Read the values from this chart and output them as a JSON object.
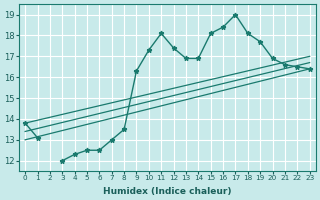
{
  "xlabel": "Humidex (Indice chaleur)",
  "background_color": "#c8eaea",
  "grid_color": "#ffffff",
  "line_color": "#1a7a6e",
  "xlim": [
    -0.5,
    23.5
  ],
  "ylim": [
    11.5,
    19.5
  ],
  "xtick_labels": [
    "0",
    "1",
    "2",
    "3",
    "4",
    "5",
    "6",
    "7",
    "8",
    "9",
    "10",
    "11",
    "12",
    "13",
    "14",
    "15",
    "16",
    "17",
    "18",
    "19",
    "20",
    "21",
    "22",
    "23"
  ],
  "ytick_values": [
    12,
    13,
    14,
    15,
    16,
    17,
    18,
    19
  ],
  "curve_x": [
    0,
    1,
    2,
    3,
    4,
    5,
    6,
    7,
    8,
    9,
    10,
    11,
    12,
    13,
    14,
    15,
    16,
    17,
    18,
    19,
    20,
    21,
    22,
    23
  ],
  "curve_y": [
    13.8,
    13.1,
    null,
    12.0,
    12.3,
    12.5,
    12.5,
    13.0,
    13.5,
    16.3,
    17.3,
    18.1,
    17.4,
    16.9,
    16.9,
    18.1,
    18.4,
    19.0,
    18.1,
    17.7,
    16.9,
    16.6,
    16.5,
    16.4
  ],
  "line1_x": [
    0,
    23
  ],
  "line1_y": [
    13.0,
    16.4
  ],
  "line2_x": [
    0,
    23
  ],
  "line2_y": [
    13.4,
    16.7
  ],
  "line3_x": [
    0,
    23
  ],
  "line3_y": [
    13.8,
    17.0
  ]
}
